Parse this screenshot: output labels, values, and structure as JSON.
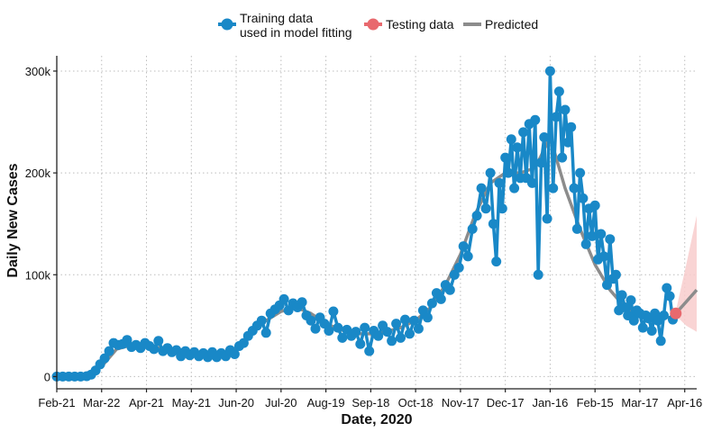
{
  "chart_data": {
    "type": "line",
    "xlabel": "Date, 2020",
    "ylabel": "Daily New Cases",
    "x_ticks": [
      "Feb-21",
      "Mar-22",
      "Apr-21",
      "May-21",
      "Jun-20",
      "Jul-20",
      "Aug-19",
      "Sep-18",
      "Oct-18",
      "Nov-17",
      "Dec-17",
      "Jan-16",
      "Feb-15",
      "Mar-17",
      "Apr-16"
    ],
    "x_tick_days": [
      0,
      30,
      60,
      90,
      120,
      150,
      180,
      210,
      240,
      270,
      300,
      330,
      360,
      390,
      420
    ],
    "xlim_days": [
      0,
      428
    ],
    "y_ticks": [
      0,
      100000,
      200000,
      300000
    ],
    "y_tick_labels": [
      "0",
      "100k",
      "200k",
      "300k"
    ],
    "ylim": [
      -12000,
      315000
    ],
    "grid": true,
    "legend_position": "top",
    "legend": [
      {
        "label_line1": "Training data",
        "label_line2": "used in model fitting",
        "key": "training",
        "color": "#1988c7"
      },
      {
        "label_line1": "Testing data",
        "label_line2": "",
        "key": "testing",
        "color": "#e8696e"
      },
      {
        "label_line1": "Predicted",
        "label_line2": "",
        "key": "predicted",
        "color": "#8c8c8c"
      }
    ],
    "series": [
      {
        "key": "training",
        "color": "#1988c7",
        "points": [
          [
            0,
            0
          ],
          [
            4,
            0
          ],
          [
            8,
            0
          ],
          [
            12,
            0
          ],
          [
            16,
            0
          ],
          [
            20,
            400
          ],
          [
            23,
            2000
          ],
          [
            26,
            6000
          ],
          [
            29,
            12000
          ],
          [
            32,
            18000
          ],
          [
            35,
            25000
          ],
          [
            38,
            33000
          ],
          [
            41,
            31000
          ],
          [
            44,
            32000
          ],
          [
            47,
            36000
          ],
          [
            50,
            29000
          ],
          [
            53,
            31000
          ],
          [
            56,
            28000
          ],
          [
            59,
            33000
          ],
          [
            62,
            30000
          ],
          [
            65,
            27000
          ],
          [
            68,
            35000
          ],
          [
            71,
            25000
          ],
          [
            74,
            28000
          ],
          [
            77,
            24000
          ],
          [
            80,
            26000
          ],
          [
            83,
            20000
          ],
          [
            86,
            25000
          ],
          [
            89,
            21000
          ],
          [
            92,
            24000
          ],
          [
            95,
            20000
          ],
          [
            98,
            23000
          ],
          [
            101,
            19000
          ],
          [
            104,
            24000
          ],
          [
            107,
            19000
          ],
          [
            110,
            23000
          ],
          [
            113,
            20000
          ],
          [
            116,
            26000
          ],
          [
            119,
            22000
          ],
          [
            122,
            30000
          ],
          [
            125,
            33000
          ],
          [
            128,
            40000
          ],
          [
            131,
            45000
          ],
          [
            134,
            50000
          ],
          [
            137,
            55000
          ],
          [
            140,
            43000
          ],
          [
            143,
            62000
          ],
          [
            146,
            66000
          ],
          [
            149,
            70000
          ],
          [
            152,
            76000
          ],
          [
            155,
            65000
          ],
          [
            158,
            72000
          ],
          [
            161,
            68000
          ],
          [
            164,
            73000
          ],
          [
            167,
            60000
          ],
          [
            170,
            55000
          ],
          [
            173,
            47000
          ],
          [
            176,
            58000
          ],
          [
            179,
            52000
          ],
          [
            182,
            45000
          ],
          [
            185,
            64000
          ],
          [
            188,
            48000
          ],
          [
            191,
            38000
          ],
          [
            194,
            46000
          ],
          [
            197,
            40000
          ],
          [
            200,
            44000
          ],
          [
            203,
            32000
          ],
          [
            206,
            48000
          ],
          [
            209,
            25000
          ],
          [
            212,
            45000
          ],
          [
            215,
            40000
          ],
          [
            218,
            50000
          ],
          [
            221,
            44000
          ],
          [
            224,
            35000
          ],
          [
            227,
            52000
          ],
          [
            230,
            38000
          ],
          [
            233,
            56000
          ],
          [
            236,
            42000
          ],
          [
            239,
            55000
          ],
          [
            242,
            47000
          ],
          [
            245,
            65000
          ],
          [
            248,
            58000
          ],
          [
            251,
            72000
          ],
          [
            254,
            82000
          ],
          [
            257,
            76000
          ],
          [
            260,
            90000
          ],
          [
            263,
            85000
          ],
          [
            266,
            100000
          ],
          [
            269,
            107000
          ],
          [
            272,
            128000
          ],
          [
            275,
            118000
          ],
          [
            278,
            145000
          ],
          [
            281,
            158000
          ],
          [
            284,
            185000
          ],
          [
            287,
            165000
          ],
          [
            290,
            200000
          ],
          [
            292,
            150000
          ],
          [
            294,
            113000
          ],
          [
            296,
            190000
          ],
          [
            298,
            165000
          ],
          [
            300,
            215000
          ],
          [
            302,
            200000
          ],
          [
            304,
            233000
          ],
          [
            306,
            185000
          ],
          [
            308,
            225000
          ],
          [
            310,
            195000
          ],
          [
            312,
            240000
          ],
          [
            314,
            195000
          ],
          [
            316,
            248000
          ],
          [
            318,
            190000
          ],
          [
            320,
            252000
          ],
          [
            322,
            100000
          ],
          [
            324,
            210000
          ],
          [
            326,
            235000
          ],
          [
            328,
            155000
          ],
          [
            330,
            300000
          ],
          [
            332,
            185000
          ],
          [
            334,
            255000
          ],
          [
            336,
            280000
          ],
          [
            338,
            215000
          ],
          [
            340,
            262000
          ],
          [
            342,
            230000
          ],
          [
            344,
            245000
          ],
          [
            346,
            185000
          ],
          [
            348,
            145000
          ],
          [
            350,
            200000
          ],
          [
            352,
            175000
          ],
          [
            354,
            130000
          ],
          [
            356,
            165000
          ],
          [
            358,
            138000
          ],
          [
            360,
            168000
          ],
          [
            362,
            115000
          ],
          [
            364,
            140000
          ],
          [
            366,
            118000
          ],
          [
            368,
            90000
          ],
          [
            370,
            135000
          ],
          [
            372,
            96000
          ],
          [
            374,
            100000
          ],
          [
            376,
            65000
          ],
          [
            378,
            80000
          ],
          [
            380,
            68000
          ],
          [
            382,
            60000
          ],
          [
            384,
            75000
          ],
          [
            386,
            55000
          ],
          [
            388,
            65000
          ],
          [
            390,
            62000
          ],
          [
            392,
            48000
          ],
          [
            394,
            60000
          ],
          [
            396,
            57000
          ],
          [
            398,
            45000
          ],
          [
            400,
            62000
          ],
          [
            402,
            55000
          ],
          [
            404,
            35000
          ],
          [
            406,
            60000
          ],
          [
            408,
            87000
          ],
          [
            410,
            79000
          ],
          [
            412,
            56000
          ]
        ]
      },
      {
        "key": "testing",
        "color": "#e8696e",
        "points": [
          [
            414,
            62000
          ]
        ]
      },
      {
        "key": "predicted",
        "color": "#8c8c8c",
        "points": [
          [
            0,
            0
          ],
          [
            20,
            500
          ],
          [
            30,
            10000
          ],
          [
            40,
            27000
          ],
          [
            50,
            31000
          ],
          [
            60,
            30000
          ],
          [
            70,
            28000
          ],
          [
            80,
            24000
          ],
          [
            90,
            22000
          ],
          [
            100,
            21000
          ],
          [
            110,
            22000
          ],
          [
            120,
            28000
          ],
          [
            130,
            42000
          ],
          [
            140,
            55000
          ],
          [
            150,
            64000
          ],
          [
            160,
            68000
          ],
          [
            170,
            62000
          ],
          [
            180,
            52000
          ],
          [
            190,
            46000
          ],
          [
            200,
            42000
          ],
          [
            210,
            42000
          ],
          [
            220,
            44000
          ],
          [
            230,
            48000
          ],
          [
            240,
            55000
          ],
          [
            250,
            68000
          ],
          [
            260,
            90000
          ],
          [
            270,
            120000
          ],
          [
            280,
            160000
          ],
          [
            290,
            190000
          ],
          [
            300,
            200000
          ],
          [
            310,
            200000
          ],
          [
            320,
            205000
          ],
          [
            330,
            235000
          ],
          [
            340,
            185000
          ],
          [
            350,
            145000
          ],
          [
            360,
            110000
          ],
          [
            370,
            85000
          ],
          [
            380,
            68000
          ],
          [
            390,
            60000
          ],
          [
            400,
            58000
          ],
          [
            410,
            58000
          ],
          [
            414,
            62000
          ],
          [
            428,
            85000
          ]
        ]
      }
    ],
    "prediction_band": {
      "color": "#f8cdcd",
      "upper": [
        [
          414,
          64000
        ],
        [
          421,
          110000
        ],
        [
          428,
          158000
        ]
      ],
      "lower": [
        [
          414,
          60000
        ],
        [
          421,
          50000
        ],
        [
          428,
          44000
        ]
      ]
    }
  }
}
